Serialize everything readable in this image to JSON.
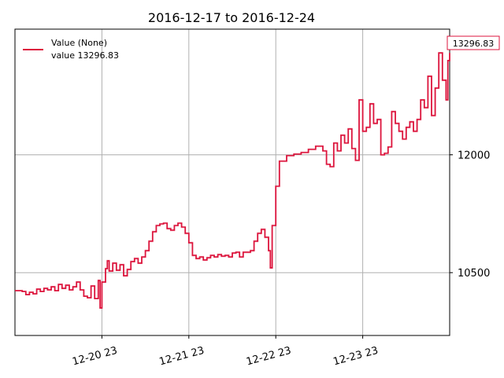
{
  "chart_data": {
    "type": "line",
    "title": "2016-12-17 to 2016-12-24",
    "xlabel": "",
    "ylabel": "",
    "x_range": [
      "2016-12-19 23:00",
      "2016-12-24 23:00"
    ],
    "ylim": [
      9700,
      13600
    ],
    "grid": true,
    "y_axis_side": "right",
    "x_ticks": [
      {
        "x": "2016-12-20 23:00",
        "label": "12-20 23"
      },
      {
        "x": "2016-12-21 23:00",
        "label": "12-21 23"
      },
      {
        "x": "2016-12-22 23:00",
        "label": "12-22 23"
      },
      {
        "x": "2016-12-23 23:00",
        "label": "12-23 23"
      }
    ],
    "y_ticks": [
      {
        "y": 10500,
        "label": "10500"
      },
      {
        "y": 12000,
        "label": "12000"
      }
    ],
    "legend": {
      "placement": "top-left",
      "series_label": "Value (None)",
      "value_label": "value 13296.83"
    },
    "last_value_label": "13296.83",
    "series": [
      {
        "name": "Value (None)",
        "color": "#dc143c",
        "points": [
          [
            "2016-12-19 23:00",
            10270
          ],
          [
            "2016-12-20 01:00",
            10260
          ],
          [
            "2016-12-20 02:00",
            10220
          ],
          [
            "2016-12-20 03:00",
            10250
          ],
          [
            "2016-12-20 04:00",
            10230
          ],
          [
            "2016-12-20 05:00",
            10290
          ],
          [
            "2016-12-20 06:00",
            10260
          ],
          [
            "2016-12-20 07:00",
            10300
          ],
          [
            "2016-12-20 08:00",
            10280
          ],
          [
            "2016-12-20 09:00",
            10320
          ],
          [
            "2016-12-20 10:00",
            10270
          ],
          [
            "2016-12-20 11:00",
            10350
          ],
          [
            "2016-12-20 12:00",
            10300
          ],
          [
            "2016-12-20 13:00",
            10340
          ],
          [
            "2016-12-20 14:00",
            10280
          ],
          [
            "2016-12-20 15:00",
            10320
          ],
          [
            "2016-12-20 16:00",
            10380
          ],
          [
            "2016-12-20 17:00",
            10280
          ],
          [
            "2016-12-20 18:00",
            10200
          ],
          [
            "2016-12-20 19:00",
            10180
          ],
          [
            "2016-12-20 20:00",
            10330
          ],
          [
            "2016-12-20 21:00",
            10170
          ],
          [
            "2016-12-20 22:00",
            10400
          ],
          [
            "2016-12-20 22:30",
            10050
          ],
          [
            "2016-12-20 23:00",
            10380
          ],
          [
            "2016-12-21 00:00",
            10550
          ],
          [
            "2016-12-21 00:30",
            10650
          ],
          [
            "2016-12-21 01:00",
            10520
          ],
          [
            "2016-12-21 02:00",
            10620
          ],
          [
            "2016-12-21 03:00",
            10530
          ],
          [
            "2016-12-21 04:00",
            10600
          ],
          [
            "2016-12-21 05:00",
            10460
          ],
          [
            "2016-12-21 06:00",
            10540
          ],
          [
            "2016-12-21 07:00",
            10640
          ],
          [
            "2016-12-21 08:00",
            10680
          ],
          [
            "2016-12-21 09:00",
            10620
          ],
          [
            "2016-12-21 10:00",
            10700
          ],
          [
            "2016-12-21 11:00",
            10780
          ],
          [
            "2016-12-21 12:00",
            10900
          ],
          [
            "2016-12-21 13:00",
            11020
          ],
          [
            "2016-12-21 14:00",
            11100
          ],
          [
            "2016-12-21 15:00",
            11120
          ],
          [
            "2016-12-21 16:00",
            11130
          ],
          [
            "2016-12-21 17:00",
            11060
          ],
          [
            "2016-12-21 18:00",
            11040
          ],
          [
            "2016-12-21 19:00",
            11100
          ],
          [
            "2016-12-21 20:00",
            11130
          ],
          [
            "2016-12-21 21:00",
            11080
          ],
          [
            "2016-12-21 22:00",
            11000
          ],
          [
            "2016-12-21 23:00",
            10880
          ],
          [
            "2016-12-22 00:00",
            10720
          ],
          [
            "2016-12-22 01:00",
            10680
          ],
          [
            "2016-12-22 02:00",
            10700
          ],
          [
            "2016-12-22 03:00",
            10660
          ],
          [
            "2016-12-22 04:00",
            10690
          ],
          [
            "2016-12-22 05:00",
            10720
          ],
          [
            "2016-12-22 06:00",
            10700
          ],
          [
            "2016-12-22 07:00",
            10730
          ],
          [
            "2016-12-22 08:00",
            10710
          ],
          [
            "2016-12-22 09:00",
            10720
          ],
          [
            "2016-12-22 10:00",
            10700
          ],
          [
            "2016-12-22 11:00",
            10750
          ],
          [
            "2016-12-22 12:00",
            10760
          ],
          [
            "2016-12-22 13:00",
            10700
          ],
          [
            "2016-12-22 14:00",
            10760
          ],
          [
            "2016-12-22 15:00",
            10760
          ],
          [
            "2016-12-22 16:00",
            10780
          ],
          [
            "2016-12-22 17:00",
            10900
          ],
          [
            "2016-12-22 18:00",
            11000
          ],
          [
            "2016-12-22 19:00",
            11050
          ],
          [
            "2016-12-22 20:00",
            10950
          ],
          [
            "2016-12-22 21:00",
            10780
          ],
          [
            "2016-12-22 21:30",
            10560
          ],
          [
            "2016-12-22 22:00",
            11100
          ],
          [
            "2016-12-22 23:00",
            11600
          ],
          [
            "2016-12-23 00:00",
            11920
          ],
          [
            "2016-12-23 02:00",
            11990
          ],
          [
            "2016-12-23 04:00",
            12010
          ],
          [
            "2016-12-23 06:00",
            12030
          ],
          [
            "2016-12-23 08:00",
            12070
          ],
          [
            "2016-12-23 10:00",
            12110
          ],
          [
            "2016-12-23 12:00",
            12050
          ],
          [
            "2016-12-23 13:00",
            11880
          ],
          [
            "2016-12-23 14:00",
            11850
          ],
          [
            "2016-12-23 15:00",
            12150
          ],
          [
            "2016-12-23 16:00",
            12050
          ],
          [
            "2016-12-23 17:00",
            12250
          ],
          [
            "2016-12-23 18:00",
            12150
          ],
          [
            "2016-12-23 19:00",
            12330
          ],
          [
            "2016-12-23 20:00",
            12080
          ],
          [
            "2016-12-23 21:00",
            11930
          ],
          [
            "2016-12-23 22:00",
            12700
          ],
          [
            "2016-12-23 23:00",
            12300
          ],
          [
            "2016-12-24 00:00",
            12350
          ],
          [
            "2016-12-24 01:00",
            12650
          ],
          [
            "2016-12-24 02:00",
            12400
          ],
          [
            "2016-12-24 03:00",
            12450
          ],
          [
            "2016-12-24 04:00",
            12000
          ],
          [
            "2016-12-24 05:00",
            12020
          ],
          [
            "2016-12-24 06:00",
            12100
          ],
          [
            "2016-12-24 07:00",
            12550
          ],
          [
            "2016-12-24 08:00",
            12400
          ],
          [
            "2016-12-24 09:00",
            12300
          ],
          [
            "2016-12-24 10:00",
            12200
          ],
          [
            "2016-12-24 11:00",
            12350
          ],
          [
            "2016-12-24 12:00",
            12420
          ],
          [
            "2016-12-24 13:00",
            12300
          ],
          [
            "2016-12-24 14:00",
            12450
          ],
          [
            "2016-12-24 15:00",
            12700
          ],
          [
            "2016-12-24 16:00",
            12600
          ],
          [
            "2016-12-24 17:00",
            13000
          ],
          [
            "2016-12-24 18:00",
            12500
          ],
          [
            "2016-12-24 19:00",
            12850
          ],
          [
            "2016-12-24 20:00",
            13296.83
          ],
          [
            "2016-12-24 21:00",
            12950
          ],
          [
            "2016-12-24 22:00",
            12700
          ],
          [
            "2016-12-24 22:30",
            13200
          ],
          [
            "2016-12-24 23:00",
            13296.83
          ]
        ]
      }
    ]
  }
}
